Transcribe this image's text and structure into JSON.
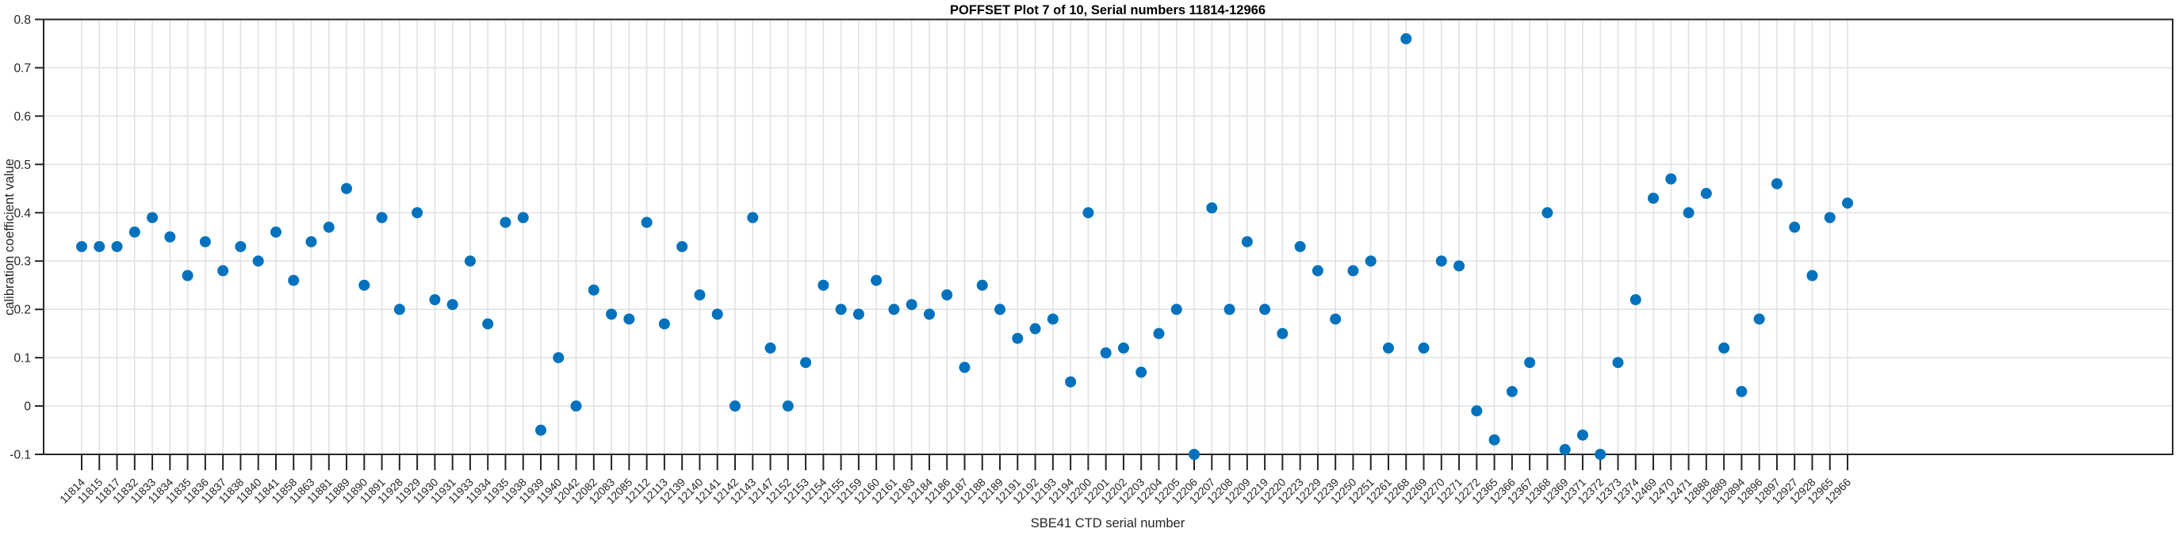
{
  "chart_data": {
    "type": "scatter",
    "title": "POFFSET Plot 7 of 10, Serial numbers 11814-12966",
    "xlabel": "SBE41 CTD serial number",
    "ylabel": "calibration coefficient value",
    "ylim": [
      -0.1,
      0.8
    ],
    "yticks": [
      0.8,
      0.7,
      0.6,
      0.5,
      0.4,
      0.3,
      0.2,
      0.1,
      0,
      -0.1
    ],
    "ytick_labels": [
      "0.8",
      "0.7",
      "0.6",
      "0.5",
      "0.4",
      "0.3",
      "0.2",
      "0.1",
      "0",
      "-0.1"
    ],
    "grid": true,
    "legend": "none",
    "marker_color": "#0072BD",
    "axis_color": "#262626",
    "grid_color": "#e2e2e2",
    "categories": [
      "11814",
      "11815",
      "11817",
      "11832",
      "11833",
      "11834",
      "11835",
      "11836",
      "11837",
      "11838",
      "11840",
      "11841",
      "11858",
      "11863",
      "11881",
      "11889",
      "11890",
      "11891",
      "11928",
      "11929",
      "11930",
      "11931",
      "11933",
      "11934",
      "11935",
      "11938",
      "11939",
      "11940",
      "12042",
      "12082",
      "12083",
      "12085",
      "12112",
      "12113",
      "12139",
      "12140",
      "12141",
      "12142",
      "12143",
      "12147",
      "12152",
      "12153",
      "12154",
      "12155",
      "12159",
      "12160",
      "12161",
      "12183",
      "12184",
      "12186",
      "12187",
      "12188",
      "12189",
      "12191",
      "12192",
      "12193",
      "12194",
      "12200",
      "12201",
      "12202",
      "12203",
      "12204",
      "12205",
      "12206",
      "12207",
      "12208",
      "12209",
      "12219",
      "12220",
      "12223",
      "12229",
      "12239",
      "12250",
      "12251",
      "12261",
      "12268",
      "12269",
      "12270",
      "12271",
      "12272",
      "12365",
      "12366",
      "12367",
      "12368",
      "12369",
      "12371",
      "12372",
      "12373",
      "12374",
      "12469",
      "12470",
      "12471",
      "12888",
      "12889",
      "12894",
      "12896",
      "12897",
      "12927",
      "12928",
      "12965",
      "12966"
    ],
    "values": [
      0.33,
      0.33,
      0.33,
      0.36,
      0.39,
      0.35,
      0.27,
      0.34,
      0.28,
      0.33,
      0.3,
      0.36,
      0.26,
      0.34,
      0.37,
      0.45,
      0.25,
      0.39,
      0.2,
      0.4,
      0.22,
      0.21,
      0.3,
      0.17,
      0.38,
      0.39,
      -0.05,
      0.1,
      0.0,
      0.24,
      0.19,
      0.18,
      0.38,
      0.17,
      0.33,
      0.23,
      0.19,
      0.0,
      0.39,
      0.12,
      0.0,
      0.09,
      0.25,
      0.2,
      0.19,
      0.26,
      0.2,
      0.21,
      0.19,
      0.23,
      0.08,
      0.25,
      0.2,
      0.14,
      0.16,
      0.18,
      0.05,
      0.4,
      0.11,
      0.12,
      0.07,
      0.15,
      0.2,
      -0.1,
      0.41,
      0.2,
      0.34,
      0.2,
      0.15,
      0.33,
      0.28,
      0.18,
      0.28,
      0.3,
      0.12,
      0.76,
      0.12,
      0.3,
      0.29,
      -0.01,
      -0.07,
      0.03,
      0.09,
      0.4,
      -0.09,
      -0.06,
      -0.1,
      0.09,
      0.22,
      0.43,
      0.47,
      0.4,
      0.44,
      0.12,
      0.03,
      0.18,
      0.46,
      0.37,
      0.27,
      0.39,
      0.42
    ]
  }
}
